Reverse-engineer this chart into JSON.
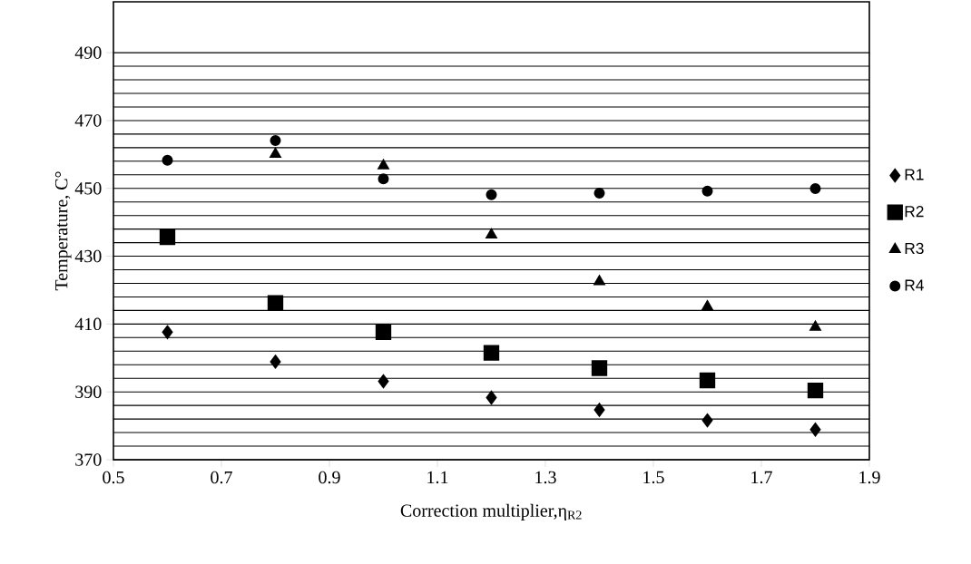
{
  "chart_data": {
    "type": "scatter",
    "xlabel": "Correction multiplier,η$_{R2}$",
    "ylabel": "Temperature, C°",
    "x": [
      0.6,
      0.8,
      1.0,
      1.2,
      1.4,
      1.6,
      1.8
    ],
    "xlim": [
      0.5,
      1.9
    ],
    "xticks": [
      0.5,
      0.7,
      0.9,
      1.1,
      1.3,
      1.5,
      1.7,
      1.9
    ],
    "ylim": [
      370,
      505
    ],
    "yticks": [
      370,
      390,
      410,
      430,
      450,
      470,
      490
    ],
    "grid": "y",
    "legend": "right",
    "series": [
      {
        "name": "R1",
        "color": "#000000",
        "marker": "diamond",
        "values": [
          407.6,
          398.9,
          393.1,
          388.3,
          384.7,
          381.6,
          378.9
        ]
      },
      {
        "name": "R2",
        "color": "#000000",
        "marker": "square",
        "values": [
          435.6,
          416.2,
          407.6,
          401.5,
          397.0,
          393.4,
          390.4
        ]
      },
      {
        "name": "R3",
        "color": "#000000",
        "marker": "triangle",
        "values": [
          null,
          460.1,
          456.7,
          436.3,
          422.5,
          415.1,
          409.1
        ]
      },
      {
        "name": "R4",
        "color": "#000000",
        "marker": "circle",
        "values": [
          458.3,
          464.1,
          452.8,
          448.1,
          448.6,
          449.2,
          449.9
        ]
      }
    ]
  }
}
